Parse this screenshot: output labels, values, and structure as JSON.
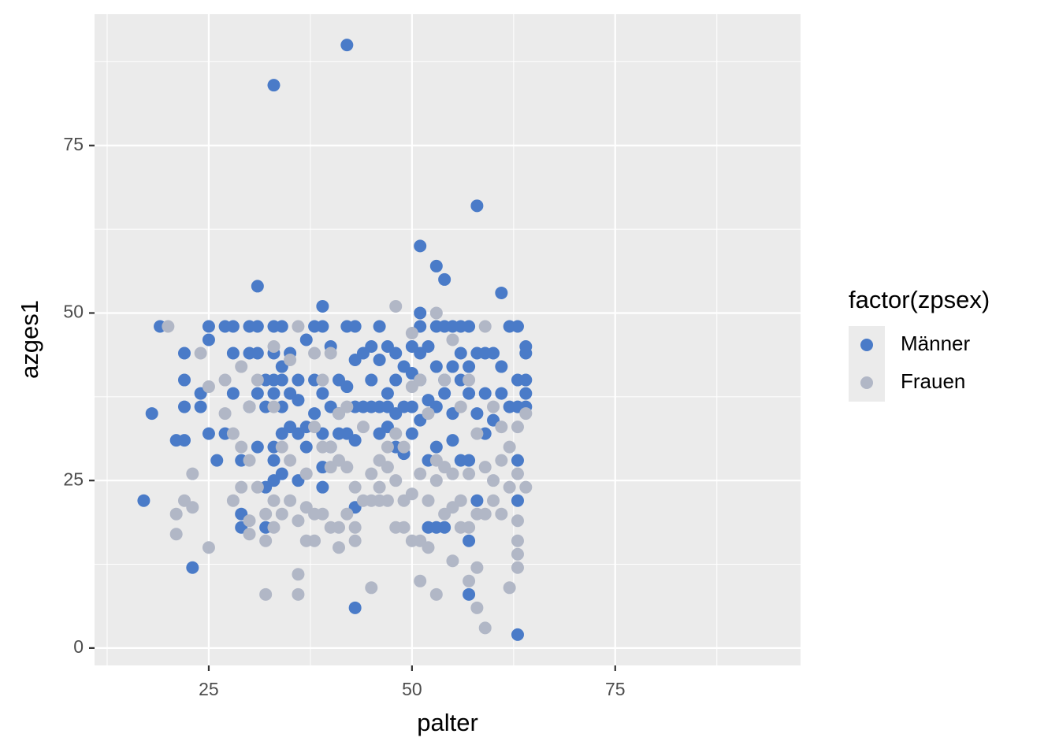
{
  "chart_data": {
    "type": "scatter",
    "x_label": "palter",
    "y_label": "azges1",
    "legend_title": "factor(zpsex)",
    "legend": "right",
    "grid": true,
    "xlim": [
      10.95,
      97.8
    ],
    "ylim": [
      -2.6,
      94.6
    ],
    "xticks": [
      25,
      50,
      75
    ],
    "yticks": [
      0,
      25,
      50,
      75
    ],
    "x_minor_ticks": [
      12.5,
      37.5,
      62.5,
      87.5
    ],
    "y_minor_ticks": [
      12.5,
      37.5,
      62.5,
      87.5
    ],
    "series": [
      {
        "name": "Männer",
        "color": "#4a7bc8",
        "x": [
          42,
          33,
          58,
          51,
          53,
          54,
          31,
          61,
          39,
          51,
          17,
          18,
          19,
          23,
          43,
          63,
          57,
          57,
          22,
          22,
          22,
          21,
          22,
          24,
          24,
          25,
          25,
          25,
          26,
          27,
          27,
          28,
          28,
          28,
          29,
          29,
          29,
          30,
          30,
          30,
          31,
          31,
          31,
          31,
          32,
          32,
          32,
          32,
          33,
          33,
          33,
          33,
          33,
          33,
          33,
          34,
          34,
          34,
          34,
          34,
          34,
          35,
          35,
          35,
          36,
          36,
          36,
          36,
          37,
          37,
          37,
          38,
          38,
          38,
          39,
          39,
          39,
          39,
          39,
          40,
          40,
          40,
          41,
          41,
          41,
          42,
          42,
          42,
          43,
          43,
          43,
          43,
          43,
          44,
          44,
          45,
          45,
          45,
          46,
          46,
          46,
          46,
          47,
          47,
          47,
          47,
          48,
          48,
          48,
          48,
          49,
          49,
          49,
          50,
          50,
          50,
          50,
          51,
          51,
          51,
          51,
          52,
          52,
          52,
          52,
          53,
          53,
          53,
          53,
          53,
          54,
          54,
          54,
          54,
          55,
          55,
          55,
          55,
          56,
          56,
          56,
          56,
          57,
          57,
          57,
          57,
          58,
          58,
          58,
          59,
          59,
          59,
          60,
          60,
          61,
          61,
          62,
          62,
          63,
          63,
          63,
          63,
          63,
          64,
          64,
          64,
          64,
          64
        ],
        "values": [
          90,
          84,
          66,
          60,
          57,
          55,
          54,
          53,
          51,
          50,
          22,
          35,
          48,
          12,
          6,
          2,
          8,
          16,
          44,
          40,
          36,
          31,
          31,
          38,
          36,
          48,
          46,
          32,
          28,
          48,
          32,
          48,
          44,
          38,
          28,
          20,
          18,
          48,
          44,
          36,
          48,
          44,
          38,
          30,
          40,
          36,
          24,
          18,
          48,
          44,
          40,
          38,
          30,
          28,
          25,
          48,
          42,
          40,
          36,
          32,
          26,
          44,
          38,
          33,
          40,
          37,
          32,
          25,
          46,
          33,
          30,
          48,
          40,
          35,
          48,
          38,
          32,
          27,
          24,
          45,
          36,
          30,
          40,
          35,
          32,
          48,
          39,
          32,
          48,
          43,
          36,
          31,
          21,
          44,
          36,
          45,
          40,
          36,
          48,
          43,
          36,
          32,
          45,
          38,
          36,
          33,
          44,
          40,
          35,
          30,
          42,
          36,
          29,
          45,
          41,
          36,
          32,
          48,
          44,
          40,
          34,
          45,
          37,
          28,
          18,
          48,
          42,
          36,
          30,
          18,
          48,
          40,
          38,
          18,
          48,
          42,
          35,
          31,
          48,
          44,
          40,
          28,
          48,
          42,
          38,
          28,
          44,
          35,
          22,
          44,
          38,
          32,
          44,
          34,
          42,
          38,
          48,
          36,
          48,
          40,
          36,
          28,
          22,
          45,
          44,
          40,
          38,
          36
        ]
      },
      {
        "name": "Frauen",
        "color": "#b1b7c6",
        "x": [
          20,
          21,
          21,
          22,
          23,
          23,
          24,
          25,
          25,
          27,
          27,
          28,
          28,
          29,
          29,
          29,
          30,
          30,
          30,
          30,
          31,
          31,
          32,
          32,
          32,
          33,
          33,
          33,
          33,
          34,
          34,
          35,
          35,
          35,
          36,
          36,
          36,
          36,
          37,
          37,
          37,
          38,
          38,
          38,
          38,
          39,
          39,
          39,
          40,
          40,
          40,
          40,
          41,
          41,
          41,
          41,
          42,
          42,
          42,
          43,
          43,
          43,
          44,
          44,
          45,
          45,
          45,
          46,
          46,
          46,
          47,
          47,
          47,
          48,
          48,
          48,
          48,
          49,
          49,
          49,
          50,
          50,
          50,
          50,
          51,
          51,
          51,
          51,
          52,
          52,
          52,
          53,
          53,
          53,
          53,
          54,
          54,
          54,
          55,
          55,
          55,
          55,
          56,
          56,
          56,
          57,
          57,
          57,
          57,
          58,
          58,
          58,
          58,
          59,
          59,
          59,
          59,
          60,
          60,
          60,
          61,
          61,
          61,
          62,
          62,
          62,
          63,
          63,
          63,
          63,
          63,
          63,
          64,
          64
        ],
        "values": [
          48,
          20,
          17,
          22,
          26,
          21,
          44,
          39,
          15,
          40,
          35,
          32,
          22,
          42,
          30,
          24,
          36,
          28,
          19,
          17,
          40,
          24,
          20,
          16,
          8,
          45,
          36,
          22,
          18,
          30,
          20,
          43,
          22,
          28,
          48,
          19,
          11,
          8,
          26,
          21,
          16,
          44,
          33,
          16,
          20,
          40,
          30,
          20,
          44,
          30,
          27,
          18,
          35,
          28,
          18,
          15,
          36,
          27,
          20,
          24,
          18,
          16,
          33,
          22,
          26,
          22,
          9,
          28,
          24,
          22,
          30,
          27,
          22,
          51,
          32,
          25,
          18,
          30,
          22,
          18,
          47,
          39,
          23,
          16,
          40,
          26,
          16,
          10,
          35,
          22,
          15,
          50,
          28,
          25,
          8,
          40,
          27,
          20,
          46,
          26,
          21,
          13,
          36,
          22,
          18,
          40,
          26,
          18,
          10,
          32,
          20,
          12,
          6,
          48,
          27,
          20,
          3,
          36,
          25,
          22,
          33,
          28,
          20,
          30,
          24,
          9,
          33,
          26,
          19,
          16,
          14,
          12,
          35,
          24
        ]
      }
    ]
  }
}
